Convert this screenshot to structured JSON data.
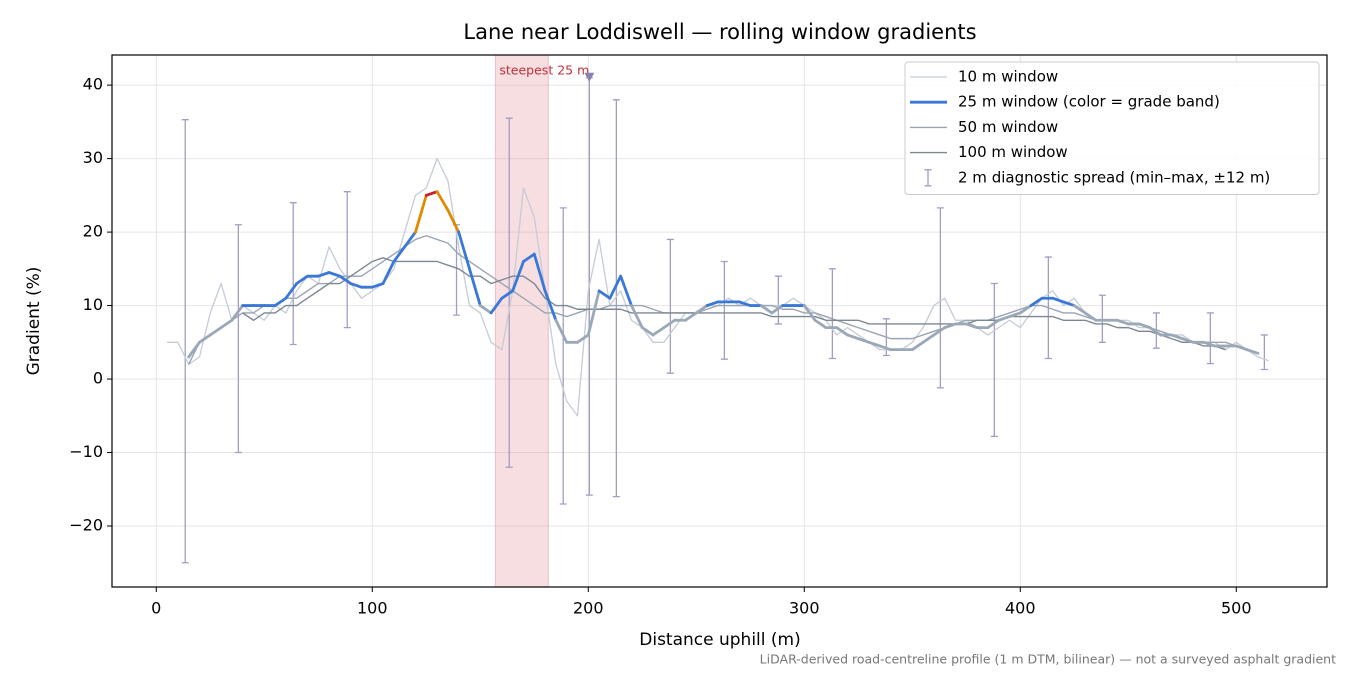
{
  "chart_data": {
    "type": "line",
    "title": "Lane near Loddiswell — rolling window gradients",
    "x_label": "Distance uphill (m)",
    "y_label": "Gradient (%)",
    "footnote": "LiDAR-derived road-centreline profile (1 m DTM, bilinear) — not a surveyed asphalt gradient",
    "xlim": [
      -20.5,
      542
    ],
    "ylim": [
      -28.3,
      44.1
    ],
    "xticks": [
      0,
      100,
      200,
      300,
      400,
      500
    ],
    "yticks": [
      {
        "value": -20,
        "label": "−20"
      },
      {
        "value": -10,
        "label": "−10"
      },
      0,
      10,
      20,
      30,
      40
    ],
    "grid": true,
    "legend": "upper right",
    "x": [
      5,
      10,
      15,
      20,
      25,
      30,
      35,
      40,
      45,
      50,
      55,
      60,
      65,
      70,
      75,
      80,
      85,
      90,
      95,
      100,
      105,
      110,
      115,
      120,
      125,
      130,
      135,
      140,
      145,
      150,
      155,
      160,
      165,
      170,
      175,
      180,
      185,
      190,
      195,
      200,
      205,
      210,
      215,
      220,
      225,
      230,
      235,
      240,
      245,
      250,
      255,
      260,
      265,
      270,
      275,
      280,
      285,
      290,
      295,
      300,
      305,
      310,
      315,
      320,
      325,
      330,
      335,
      340,
      345,
      350,
      355,
      360,
      365,
      370,
      375,
      380,
      385,
      390,
      395,
      400,
      405,
      410,
      415,
      420,
      425,
      430,
      435,
      440,
      445,
      450,
      455,
      460,
      465,
      470,
      475,
      480,
      485,
      490,
      495,
      500,
      505,
      510,
      515
    ],
    "series": [
      {
        "name": "10 m window",
        "color": "#c5ccd6",
        "width": 1.3,
        "values": [
          5,
          5,
          2,
          3,
          9,
          13,
          8,
          10,
          9,
          8,
          10,
          9,
          12,
          14,
          13,
          18,
          15,
          13,
          11,
          12,
          13,
          15,
          20,
          25,
          26,
          30,
          27,
          18,
          10,
          9,
          5,
          4,
          12,
          26,
          22,
          12,
          2,
          -3,
          -5,
          12,
          19,
          10,
          12,
          8,
          7,
          5,
          5,
          7,
          9,
          9,
          10,
          10,
          11,
          10,
          11,
          10,
          10,
          10,
          11,
          10,
          9,
          8,
          6,
          7,
          6,
          5,
          4,
          4,
          4,
          5,
          7,
          10,
          11,
          8,
          8,
          7,
          6,
          7,
          8,
          7,
          9,
          11,
          12,
          10,
          11,
          9,
          8,
          8,
          8,
          8,
          7,
          7,
          6,
          6,
          6,
          5,
          5,
          5,
          4,
          5,
          4,
          3,
          2.5
        ]
      },
      {
        "name": "25 m window (color = grade band)",
        "color": "#3a78d8",
        "width": 2.8,
        "base_color": "#9aa8b8",
        "bands": [
          {
            "from": 10,
            "color": "#3a78d8"
          },
          {
            "from": 20,
            "color": "#e08a00"
          },
          {
            "from": 25,
            "color": "#c81e2a"
          }
        ],
        "values": [
          null,
          null,
          3,
          5,
          6,
          7,
          8,
          10,
          10,
          10,
          10,
          11,
          13,
          14,
          14,
          14.5,
          14,
          13,
          12.5,
          12.5,
          13,
          16,
          18,
          20,
          25,
          25.5,
          23,
          20,
          15,
          10,
          9,
          11,
          12,
          16,
          17,
          12,
          8,
          5,
          5,
          6,
          12,
          11,
          14,
          10,
          7,
          6,
          7,
          8,
          8,
          9,
          10,
          10.5,
          10.5,
          10.5,
          10,
          10,
          9,
          10,
          10,
          10,
          8,
          7,
          7,
          6,
          5.5,
          5,
          4.5,
          4,
          4,
          4,
          5,
          6,
          7,
          7.5,
          7.5,
          7,
          7,
          8,
          8.5,
          9,
          10,
          11,
          11,
          10.5,
          10,
          9,
          8,
          8,
          8,
          7.5,
          7.5,
          7,
          6,
          6,
          5.5,
          5,
          5,
          4.5,
          4.5,
          4.5,
          4,
          3.5,
          null
        ]
      },
      {
        "name": "50 m window",
        "color": "#9aa5b3",
        "width": 1.4,
        "values": [
          null,
          null,
          2,
          5,
          6,
          7,
          8,
          9,
          9,
          10,
          10,
          11,
          11,
          12,
          13,
          13,
          14,
          14,
          14,
          15,
          16,
          17,
          18,
          19,
          19.5,
          19,
          18.5,
          17,
          16,
          15,
          14,
          13,
          12,
          11,
          10,
          9,
          9,
          8.5,
          9,
          9.5,
          9.5,
          10,
          10,
          10,
          10,
          9.5,
          9,
          9,
          9,
          9,
          9.5,
          10,
          10,
          10,
          10,
          10,
          10,
          9.5,
          9.5,
          9,
          9,
          8.5,
          8,
          7.5,
          7,
          6.5,
          6,
          5.5,
          5.5,
          5.5,
          6,
          6.5,
          7,
          7.5,
          8,
          8,
          8,
          8.5,
          9,
          9.5,
          10,
          10,
          9.5,
          9,
          9,
          8.5,
          8,
          8,
          8,
          7.5,
          7.5,
          7,
          6.5,
          6,
          5.5,
          5,
          5,
          5,
          5,
          4.5,
          4,
          3.5,
          null
        ]
      },
      {
        "name": "100 m window",
        "color": "#7d8794",
        "width": 1.4,
        "values": [
          null,
          null,
          null,
          null,
          null,
          null,
          null,
          9,
          8,
          9,
          9,
          10,
          10,
          11,
          12,
          13,
          13,
          14,
          15,
          16,
          16.5,
          16,
          16,
          16,
          16,
          16,
          15.5,
          15,
          14,
          14,
          13,
          13.5,
          14,
          14,
          13,
          11,
          10,
          10,
          9.5,
          9.5,
          9.5,
          9.5,
          9.5,
          9,
          9,
          9,
          9,
          9,
          9,
          9,
          9,
          9,
          9,
          9,
          9,
          9,
          8.5,
          8.5,
          8.5,
          8.5,
          8.5,
          8,
          8,
          8,
          8,
          7.5,
          7.5,
          7.5,
          7.5,
          7.5,
          7.5,
          7.5,
          7.5,
          7.5,
          7.5,
          8,
          8,
          8,
          8.5,
          8.5,
          8.5,
          8.5,
          8.5,
          8,
          8,
          8,
          7.5,
          7.5,
          7,
          7,
          6.5,
          6.5,
          6,
          5.5,
          5,
          5,
          4.5,
          4.5,
          4,
          null,
          null,
          null,
          null
        ]
      }
    ],
    "spread": {
      "name": "2 m diagnostic spread (min–max, ±12 m)",
      "color": "#a29ec2",
      "x": [
        13.4,
        38,
        63.4,
        88.4,
        139,
        163.4,
        188.4,
        200.5,
        213,
        238,
        263,
        288,
        313,
        338,
        363,
        388,
        413,
        438,
        463,
        488,
        513
      ],
      "low": [
        -25,
        -10,
        4.7,
        7,
        8.7,
        -12,
        -17,
        -15.8,
        -16,
        0.8,
        2.7,
        7.5,
        2.8,
        3.2,
        -1.2,
        -7.8,
        2.8,
        5,
        4.2,
        2.1,
        1.3
      ],
      "high": [
        35.3,
        21,
        24,
        25.5,
        21,
        35.5,
        23.3,
        41,
        38,
        19,
        16,
        14,
        15,
        8.2,
        23.3,
        13,
        16.6,
        11.4,
        9,
        9,
        6
      ]
    },
    "peak_marker": {
      "x": 200.5,
      "y": 41,
      "color": "#8a82b0"
    },
    "highlight": {
      "label": "steepest 25 m",
      "span": [
        157,
        181.5
      ],
      "color": "#e8a0a8",
      "label_color": "#c0303a"
    }
  }
}
